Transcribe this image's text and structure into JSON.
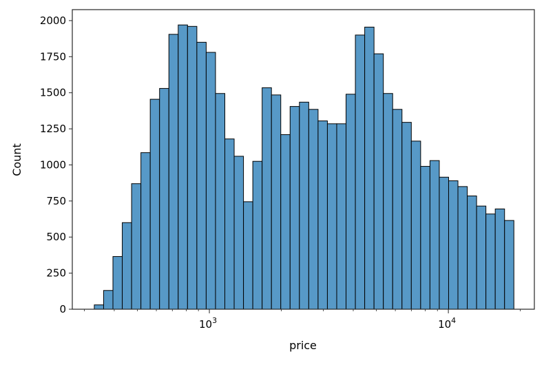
{
  "chart_data": {
    "type": "bar",
    "subtype": "histogram",
    "title": "",
    "xlabel": "price",
    "ylabel": "Count",
    "xscale": "log",
    "xlim": [
      267,
      22900
    ],
    "ylim": [
      0,
      2076
    ],
    "bin_range": [
      330,
      18800
    ],
    "x_major_ticks": [
      {
        "value": 1000,
        "base": "10",
        "exp": "3"
      },
      {
        "value": 10000,
        "base": "10",
        "exp": "4"
      }
    ],
    "x_minor_ticks": [
      300,
      400,
      500,
      600,
      700,
      800,
      900,
      2000,
      3000,
      4000,
      5000,
      6000,
      7000,
      8000,
      9000,
      20000
    ],
    "y_ticks": [
      0,
      250,
      500,
      750,
      1000,
      1250,
      1500,
      1750,
      2000
    ],
    "y_tick_labels": [
      "0",
      "250",
      "500",
      "750",
      "1000",
      "1250",
      "1500",
      "1750",
      "2000"
    ],
    "values": [
      30,
      130,
      365,
      600,
      870,
      1085,
      1455,
      1530,
      1905,
      1970,
      1960,
      1850,
      1780,
      1495,
      1180,
      1060,
      745,
      1025,
      1535,
      1485,
      1210,
      1405,
      1435,
      1385,
      1305,
      1285,
      1285,
      1490,
      1900,
      1955,
      1770,
      1495,
      1385,
      1295,
      1165,
      990,
      1030,
      915,
      890,
      850,
      785,
      715,
      660,
      695,
      615
    ],
    "grid": false,
    "legend": "none",
    "bar_color": "#5799c7",
    "edge_color": "#000000"
  }
}
